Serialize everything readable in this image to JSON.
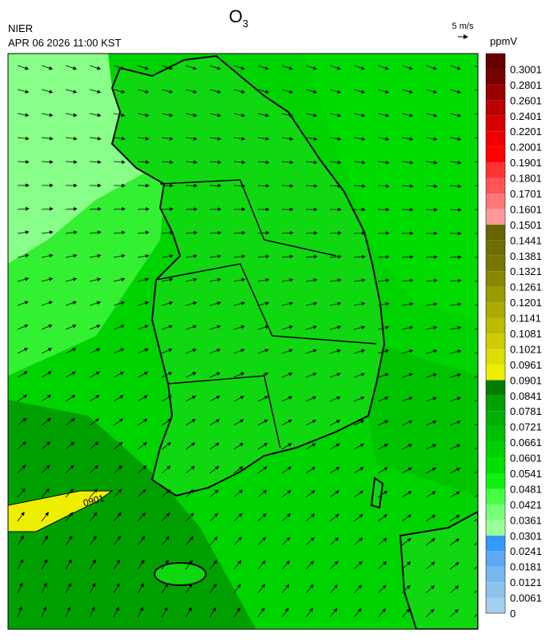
{
  "header": {
    "source": "NIER",
    "timestamp": "APR 06 2026 11:00 KST"
  },
  "title": {
    "text": "O",
    "subscript": "3"
  },
  "wind_reference": "5 m/s",
  "contour_label": "0901",
  "colorbar": {
    "unit": "ppmV",
    "levels": [
      0,
      0.0061,
      0.0121,
      0.0181,
      0.0241,
      0.0301,
      0.0361,
      0.0421,
      0.0481,
      0.0541,
      0.0601,
      0.0661,
      0.0721,
      0.0781,
      0.0841,
      0.0901,
      0.0961,
      0.1021,
      0.1081,
      0.1141,
      0.1201,
      0.1261,
      0.1321,
      0.1381,
      0.1441,
      0.1501,
      0.1601,
      0.1701,
      0.1801,
      0.1901,
      0.2001,
      0.2201,
      0.2401,
      0.2601,
      0.2801,
      0.3001
    ],
    "colors": [
      "#a3d0ee",
      "#8ec2ee",
      "#78b6f0",
      "#5ea8f4",
      "#3399ff",
      "#99ff99",
      "#77ff77",
      "#44ff44",
      "#11f011",
      "#00e000",
      "#00d000",
      "#00c000",
      "#00b000",
      "#00a000",
      "#007d00",
      "#eeee00",
      "#dcdc00",
      "#cccc00",
      "#bbbb00",
      "#aaaa00",
      "#999900",
      "#888800",
      "#777700",
      "#6e6e00",
      "#666600",
      "#ff9999",
      "#ff7777",
      "#ff5555",
      "#ff3333",
      "#ff0000",
      "#ee0000",
      "#d80000",
      "#bb0000",
      "#990000",
      "#770000",
      "#660000"
    ]
  }
}
